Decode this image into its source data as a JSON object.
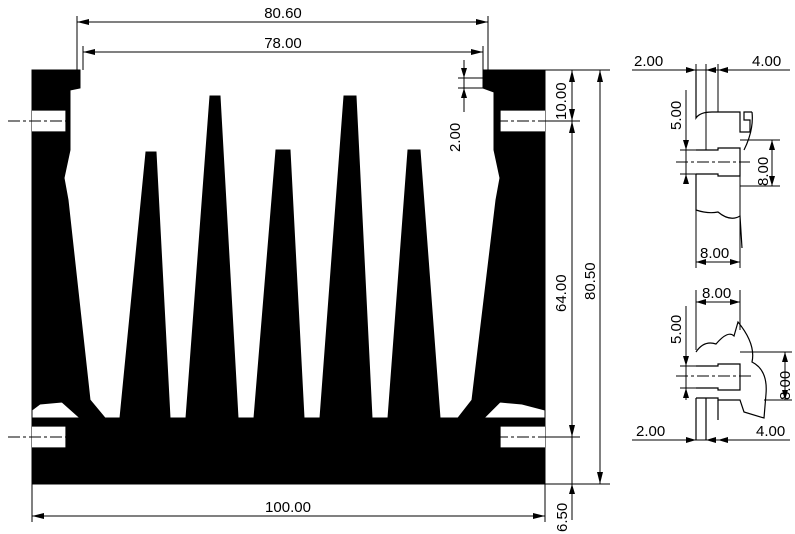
{
  "dimensions": {
    "top_width": "80.60",
    "inner_width": "78.00",
    "base_width": "100.00",
    "total_height": "80.50",
    "fin_height": "64.00",
    "top_flange_height": "10.00",
    "slot_gap": "2.00",
    "base_thickness": "6.50"
  },
  "detail_top": {
    "left_gap": "2.00",
    "right_width": "4.00",
    "slot_height": "5.00",
    "slot_depth": "8.00",
    "slot_width": "8.00"
  },
  "detail_bottom": {
    "slot_width": "8.00",
    "slot_height": "5.00",
    "slot_depth": "8.00",
    "left_gap": "2.00",
    "right_width": "4.00"
  },
  "colors": {
    "ink": "#000000",
    "paper": "#ffffff"
  }
}
